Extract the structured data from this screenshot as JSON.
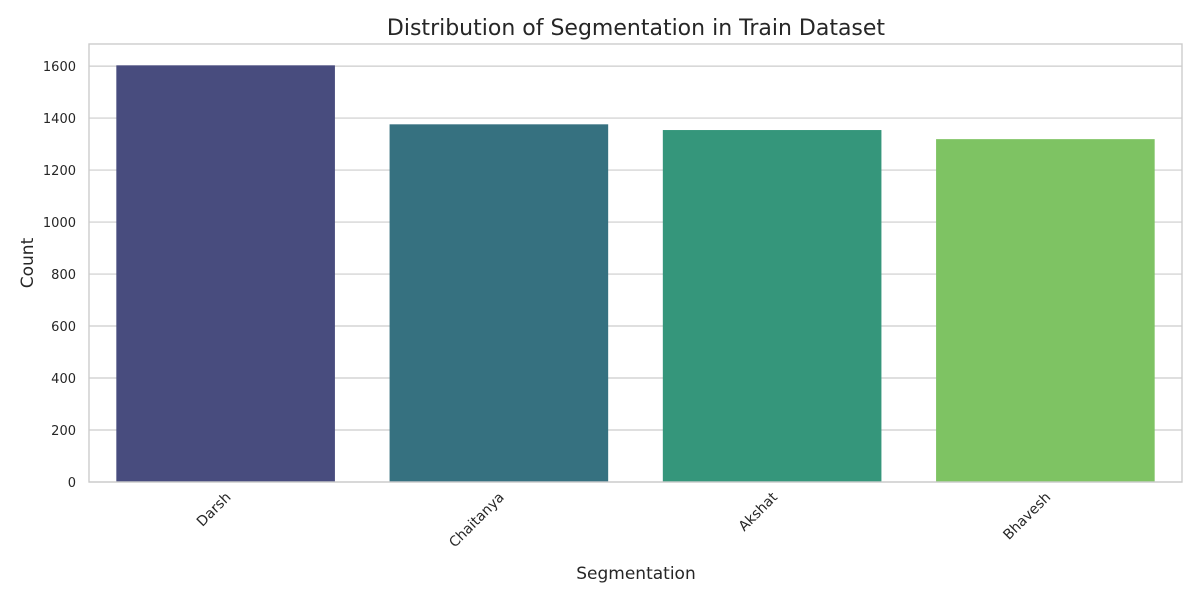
{
  "chart_data": {
    "type": "bar",
    "title": "Distribution of Segmentation in Train Dataset",
    "xlabel": "Segmentation",
    "ylabel": "Count",
    "categories": [
      "Darsh",
      "Chaitanya",
      "Akshat",
      "Bhavesh"
    ],
    "values": [
      1603,
      1376,
      1354,
      1319
    ],
    "colors": [
      "#484c7e",
      "#367180",
      "#35967b",
      "#7ec363"
    ],
    "yticks": [
      0,
      200,
      400,
      600,
      800,
      1000,
      1200,
      1400,
      1600
    ],
    "ylim": [
      0,
      1685
    ],
    "grid": "y",
    "xtick_rotation": 45
  }
}
